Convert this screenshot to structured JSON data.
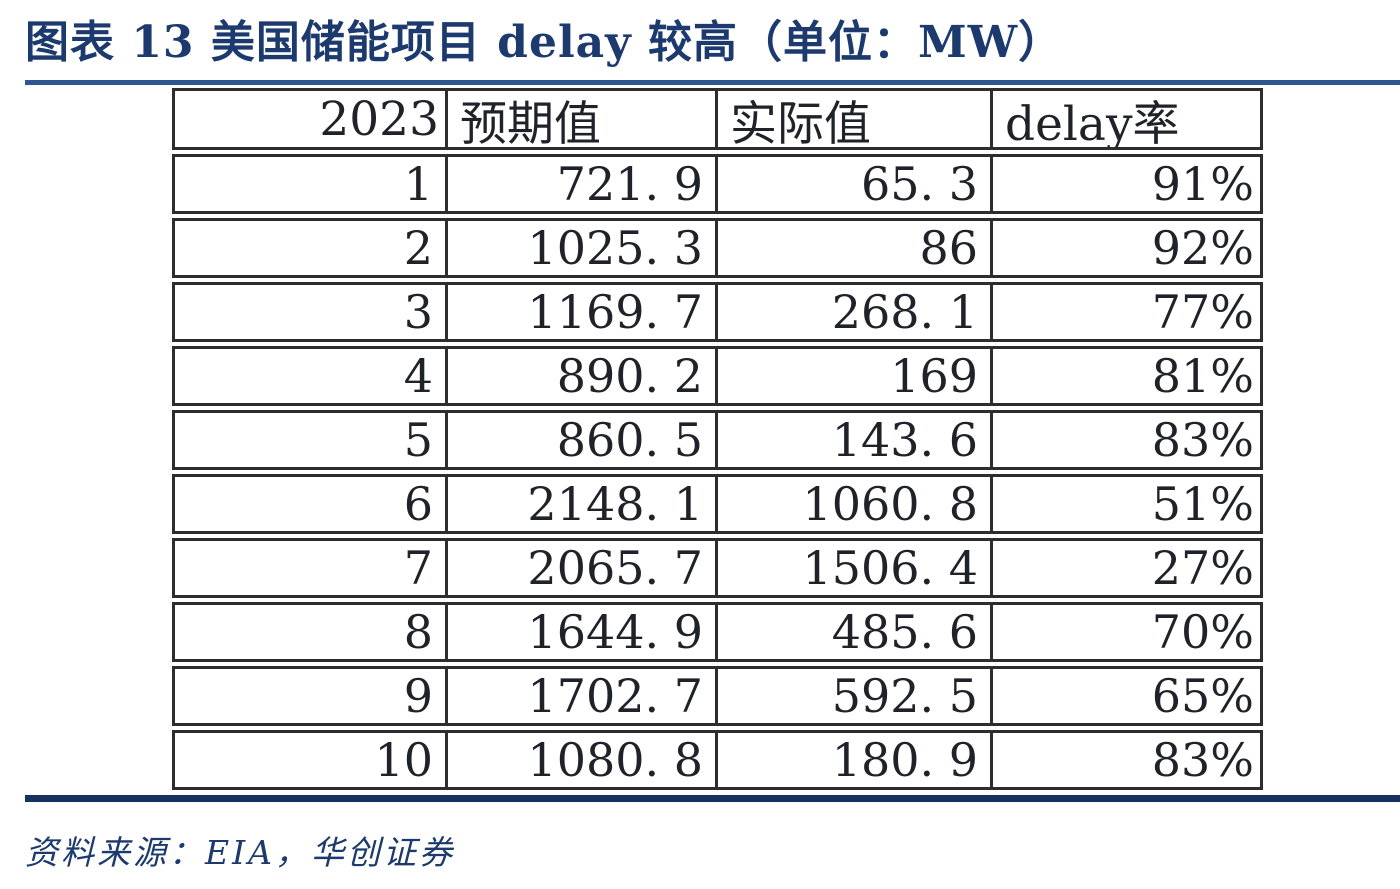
{
  "title": "图表 13 美国储能项目 delay 较高（单位：MW）",
  "source_note": "资料来源：EIA，华创证券",
  "colors": {
    "title_text": "#1c3a6e",
    "rule_top": "#2e5594",
    "rule_bottom": "#16315f",
    "table_border": "#2d2d2d",
    "cell_text": "#1f2329"
  },
  "table": {
    "headers": [
      "2023",
      "预期值",
      "实际值",
      "delay率"
    ],
    "rows": [
      [
        "1",
        "721. 9",
        "65. 3",
        "91%"
      ],
      [
        "2",
        "1025. 3",
        "86",
        "92%"
      ],
      [
        "3",
        "1169. 7",
        "268. 1",
        "77%"
      ],
      [
        "4",
        "890. 2",
        "169",
        "81%"
      ],
      [
        "5",
        "860. 5",
        "143. 6",
        "83%"
      ],
      [
        "6",
        "2148. 1",
        "1060. 8",
        "51%"
      ],
      [
        "7",
        "2065. 7",
        "1506. 4",
        "27%"
      ],
      [
        "8",
        "1644. 9",
        "485. 6",
        "70%"
      ],
      [
        "9",
        "1702. 7",
        "592. 5",
        "65%"
      ],
      [
        "10",
        "1080. 8",
        "180. 9",
        "83%"
      ]
    ]
  },
  "chart_data": {
    "type": "table",
    "title": "图表 13 美国储能项目 delay 较高（单位：MW）",
    "unit": "MW",
    "columns": [
      "2023",
      "预期值",
      "实际值",
      "delay率"
    ],
    "months": [
      1,
      2,
      3,
      4,
      5,
      6,
      7,
      8,
      9,
      10
    ],
    "series": [
      {
        "name": "预期值",
        "values": [
          721.9,
          1025.3,
          1169.7,
          890.2,
          860.5,
          2148.1,
          2065.7,
          1644.9,
          1702.7,
          1080.8
        ]
      },
      {
        "name": "实际值",
        "values": [
          65.3,
          86,
          268.1,
          169,
          143.6,
          1060.8,
          1506.4,
          485.6,
          592.5,
          180.9
        ]
      }
    ],
    "delay_rate": [
      "91%",
      "92%",
      "77%",
      "81%",
      "83%",
      "51%",
      "27%",
      "70%",
      "65%",
      "83%"
    ],
    "source": "资料来源：EIA，华创证券"
  }
}
